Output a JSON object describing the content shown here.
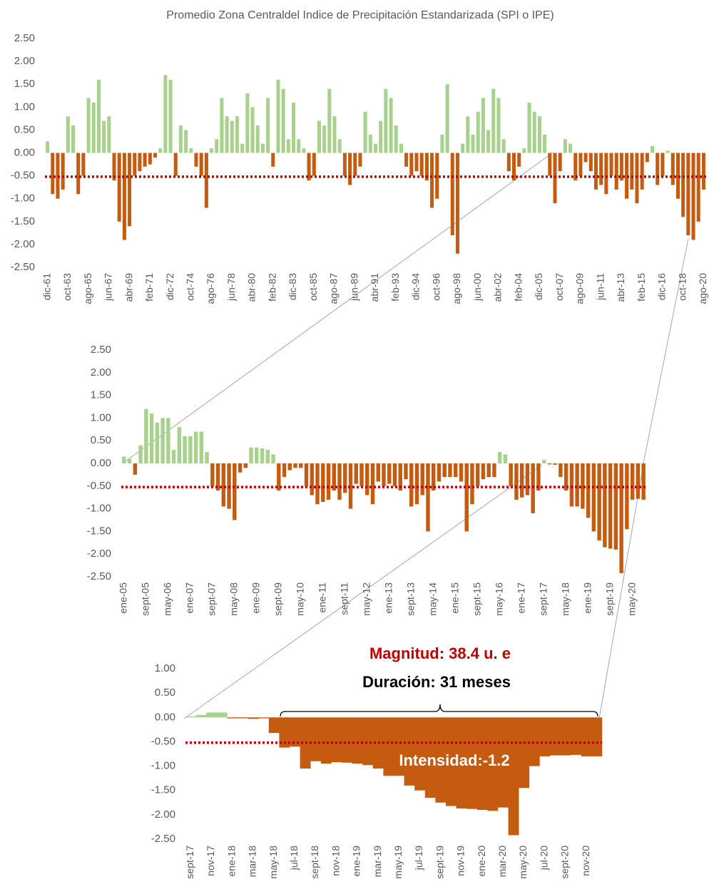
{
  "chart_data": [
    {
      "type": "bar",
      "title": "Promedio Zona Centraldel Indice de Precipitación Estandarizada (SPI o IPE)",
      "categories": [
        "dic-61",
        null,
        null,
        null,
        "oct-63",
        null,
        null,
        null,
        "ago-65",
        null,
        null,
        null,
        "jun-67",
        null,
        null,
        null,
        "abr-69",
        null,
        null,
        null,
        "feb-71",
        null,
        null,
        null,
        "dic-72",
        null,
        null,
        null,
        "oct-74",
        null,
        null,
        null,
        "ago-76",
        null,
        null,
        null,
        "jun-78",
        null,
        null,
        null,
        "abr-80",
        null,
        null,
        null,
        "feb-82",
        null,
        null,
        null,
        "dic-83",
        null,
        null,
        null,
        "oct-85",
        null,
        null,
        null,
        "ago-87",
        null,
        null,
        null,
        "jun-89",
        null,
        null,
        null,
        "abr-91",
        null,
        null,
        null,
        "feb-93",
        null,
        null,
        null,
        "dic-94",
        null,
        null,
        null,
        "oct-96",
        null,
        null,
        null,
        "ago-98",
        null,
        null,
        null,
        "jun-00",
        null,
        null,
        null,
        "abr-02",
        null,
        null,
        null,
        "feb-04",
        null,
        null,
        null,
        "dic-05",
        null,
        null,
        null,
        "oct-07",
        null,
        null,
        null,
        "ago-09",
        null,
        null,
        null,
        "jun-11",
        null,
        null,
        null,
        "abr-13",
        null,
        null,
        null,
        "feb-15",
        null,
        null,
        null,
        "dic-16",
        null,
        null,
        null,
        "oct-18",
        null,
        null,
        null,
        "ago-20"
      ],
      "values": [
        0.25,
        -0.9,
        -1.0,
        -0.8,
        0.8,
        0.6,
        -0.9,
        -0.5,
        1.2,
        1.1,
        1.6,
        0.7,
        0.8,
        -0.6,
        -1.5,
        -1.9,
        -1.6,
        -0.5,
        -0.4,
        -0.3,
        -0.25,
        -0.1,
        0.1,
        1.7,
        1.6,
        -0.5,
        0.6,
        0.5,
        0.1,
        -0.3,
        -0.5,
        -1.2,
        0.1,
        0.3,
        1.2,
        0.8,
        0.7,
        0.8,
        0.2,
        1.3,
        1.0,
        0.6,
        0.2,
        1.2,
        -0.3,
        1.6,
        1.4,
        0.3,
        1.1,
        0.3,
        0.1,
        -0.6,
        -0.5,
        0.7,
        0.6,
        1.4,
        0.8,
        0.3,
        -0.5,
        -0.7,
        -0.5,
        -0.3,
        0.9,
        0.4,
        0.2,
        0.7,
        1.4,
        1.2,
        0.6,
        0.2,
        -0.3,
        -0.5,
        -0.4,
        -0.5,
        -0.6,
        -1.2,
        -1.0,
        0.4,
        1.5,
        -1.8,
        -2.2,
        0.2,
        0.8,
        0.4,
        0.9,
        1.2,
        0.5,
        1.4,
        1.2,
        0.3,
        -0.4,
        -0.6,
        -0.3,
        0.1,
        1.1,
        0.9,
        0.8,
        0.4,
        -0.5,
        -1.1,
        -0.4,
        0.3,
        0.2,
        -0.6,
        -0.5,
        -0.2,
        -0.4,
        -0.8,
        -0.7,
        -0.9,
        -0.5,
        -0.8,
        -0.6,
        -1.0,
        -0.8,
        -1.1,
        -0.8,
        -0.2,
        0.15,
        -0.7,
        -0.5,
        0.05,
        -0.7,
        -1.0,
        -1.4,
        -1.8,
        -1.9,
        -1.5,
        -0.8
      ],
      "positive_color": "#a9d18e",
      "negative_color": "#c55a11",
      "threshold": -0.52,
      "threshold_color": "#c00000",
      "ylim": [
        -2.5,
        2.5
      ],
      "yticks": [
        {
          "value": 2.5,
          "label": "2.50"
        },
        {
          "value": 2,
          "label": "2.00"
        },
        {
          "value": 1.5,
          "label": "1.50"
        },
        {
          "value": 1,
          "label": "1.00"
        },
        {
          "value": 0.5,
          "label": "0.50"
        },
        {
          "value": 0,
          "label": "0.00"
        },
        {
          "value": -0.5,
          "label": "-0.50"
        },
        {
          "value": -1,
          "label": "-1.00"
        },
        {
          "value": -1.5,
          "label": "-1.50"
        },
        {
          "value": -2,
          "label": "-2.00"
        },
        {
          "value": -2.5,
          "label": "-2.50"
        }
      ]
    },
    {
      "type": "bar",
      "categories": [
        "ene-05",
        null,
        null,
        null,
        "sept-05",
        null,
        null,
        null,
        "may-06",
        null,
        null,
        null,
        "ene-07",
        null,
        null,
        null,
        "sept-07",
        null,
        null,
        null,
        "may-08",
        null,
        null,
        null,
        "ene-09",
        null,
        null,
        null,
        "sept-09",
        null,
        null,
        null,
        "may-10",
        null,
        null,
        null,
        "ene-11",
        null,
        null,
        null,
        "sept-11",
        null,
        null,
        null,
        "may-12",
        null,
        null,
        null,
        "ene-13",
        null,
        null,
        null,
        "sept-13",
        null,
        null,
        null,
        "may-14",
        null,
        null,
        null,
        "ene-15",
        null,
        null,
        null,
        "sept-15",
        null,
        null,
        null,
        "may-16",
        null,
        null,
        null,
        "ene-17",
        null,
        null,
        null,
        "sept-17",
        null,
        null,
        null,
        "may-18",
        null,
        null,
        null,
        "ene-19",
        null,
        null,
        null,
        "sept-19",
        null,
        null,
        null,
        "may-20",
        null,
        null
      ],
      "values": [
        0.15,
        0.1,
        -0.25,
        0.4,
        1.2,
        1.1,
        0.9,
        1.0,
        1.0,
        0.3,
        0.8,
        0.6,
        0.6,
        0.7,
        0.7,
        0.25,
        -0.5,
        -0.6,
        -0.95,
        -1.0,
        -1.25,
        -0.2,
        -0.1,
        0.35,
        0.35,
        0.33,
        0.3,
        0.2,
        -0.6,
        -0.3,
        -0.15,
        -0.1,
        -0.1,
        -0.5,
        -0.7,
        -0.9,
        -0.85,
        -0.8,
        -0.6,
        -0.8,
        -0.65,
        -1.0,
        -0.45,
        -0.5,
        -0.7,
        -0.9,
        -0.4,
        -0.5,
        -0.45,
        -0.5,
        -0.6,
        -0.35,
        -0.95,
        -0.9,
        -0.7,
        -1.5,
        -0.6,
        -0.4,
        -0.3,
        -0.3,
        -0.3,
        -0.4,
        -1.5,
        -0.9,
        -0.5,
        -0.35,
        -0.3,
        -0.3,
        0.25,
        0.2,
        -0.5,
        -0.8,
        -0.75,
        -0.7,
        -1.1,
        -0.6,
        0.08,
        -0.02,
        -0.03,
        -0.3,
        -0.6,
        -0.95,
        -0.95,
        -1.0,
        -1.2,
        -1.5,
        -1.7,
        -1.85,
        -1.88,
        -1.9,
        -2.42,
        -1.45,
        -0.8,
        -0.78,
        -0.8
      ],
      "positive_color": "#a9d18e",
      "negative_color": "#c55a11",
      "threshold": -0.52,
      "threshold_color": "#c00000",
      "ylim": [
        -2.5,
        2.5
      ],
      "yticks": [
        {
          "value": 2.5,
          "label": "2.50"
        },
        {
          "value": 2,
          "label": "2.00"
        },
        {
          "value": 1.5,
          "label": "1.50"
        },
        {
          "value": 1,
          "label": "1.00"
        },
        {
          "value": 0.5,
          "label": "0.50"
        },
        {
          "value": 0,
          "label": "0.00"
        },
        {
          "value": -0.5,
          "label": "-0.50"
        },
        {
          "value": -1,
          "label": "-1.00"
        },
        {
          "value": -1.5,
          "label": "-1.50"
        },
        {
          "value": -2,
          "label": "-2.00"
        },
        {
          "value": -2.5,
          "label": "-2.50"
        }
      ]
    },
    {
      "type": "bar",
      "categories": [
        "sept-17",
        null,
        "nov-17",
        null,
        "ene-18",
        null,
        "mar-18",
        null,
        "may-18",
        null,
        "jul-18",
        null,
        "sept-18",
        null,
        "nov-18",
        null,
        "ene-19",
        null,
        "mar-19",
        null,
        "may-19",
        null,
        "jul-19",
        null,
        "sept-19",
        null,
        "nov-19",
        null,
        "ene-20",
        null,
        "mar-20",
        null,
        "may-20",
        null,
        "jul-20",
        null,
        "sept-20",
        null,
        "nov-20",
        null
      ],
      "values": [
        0.02,
        0.05,
        0.1,
        0.1,
        -0.02,
        -0.02,
        -0.03,
        -0.02,
        -0.32,
        -0.62,
        -0.6,
        -1.05,
        -0.9,
        -0.95,
        -0.92,
        -0.93,
        -0.95,
        -0.98,
        -1.05,
        -1.2,
        -1.2,
        -1.4,
        -1.5,
        -1.65,
        -1.75,
        -1.82,
        -1.87,
        -1.88,
        -1.9,
        -1.92,
        -1.85,
        -2.42,
        -1.45,
        -1.0,
        -0.8,
        -0.78,
        -0.78,
        -0.77,
        -0.8,
        -0.8
      ],
      "positive_color": "#a9d18e",
      "negative_color": "#c55a11",
      "threshold": -0.52,
      "threshold_color": "#c00000",
      "annotations": [
        "Magnitud: 38.4 u. e",
        "Duración: 31 meses",
        "Intensidad:-1.2"
      ],
      "ylim": [
        -2.5,
        1
      ],
      "yticks": [
        {
          "value": 1,
          "label": "1.00"
        },
        {
          "value": 0.5,
          "label": "0.50"
        },
        {
          "value": 0,
          "label": "0.00"
        },
        {
          "value": -0.5,
          "label": "-0.50"
        },
        {
          "value": -1,
          "label": "-1.00"
        },
        {
          "value": -1.5,
          "label": "-1.50"
        },
        {
          "value": -2,
          "label": "-2.00"
        },
        {
          "value": -2.5,
          "label": "-2.50"
        }
      ]
    }
  ]
}
